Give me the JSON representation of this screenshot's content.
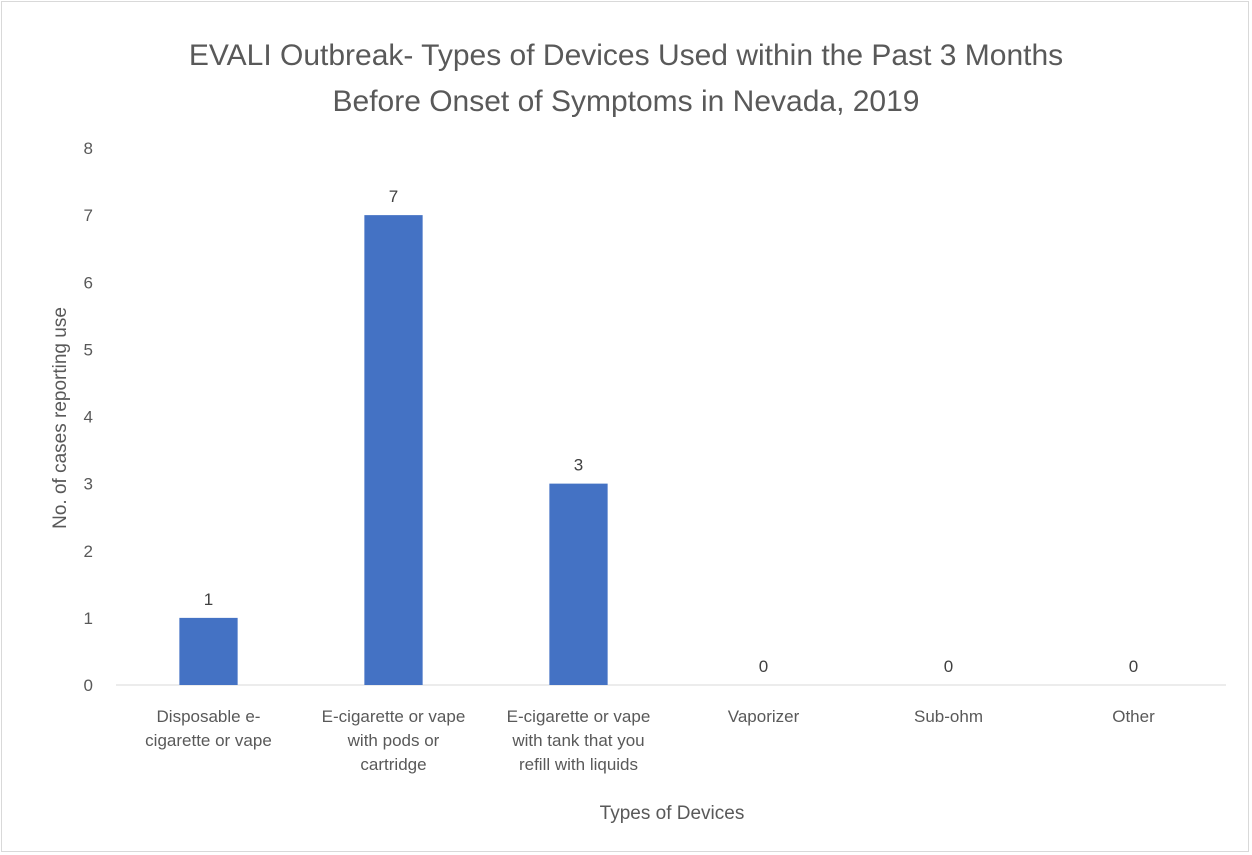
{
  "chart_data": {
    "type": "bar",
    "title_lines": [
      "EVALI Outbreak- Types of Devices Used within the Past 3 Months",
      "Before Onset of Symptoms in Nevada, 2019"
    ],
    "xlabel": "Types of Devices",
    "ylabel": "No. of cases reporting use",
    "ylim": [
      0,
      8
    ],
    "yticks": [
      "0",
      "1",
      "2",
      "3",
      "4",
      "5",
      "6",
      "7",
      "8"
    ],
    "categories": [
      [
        "Disposable e-",
        "cigarette or vape"
      ],
      [
        "E-cigarette or vape",
        "with pods or",
        "cartridge"
      ],
      [
        "E-cigarette or vape",
        "with tank that you",
        "refill with liquids"
      ],
      [
        "Vaporizer"
      ],
      [
        "Sub-ohm"
      ],
      [
        "Other"
      ]
    ],
    "values": [
      1,
      7,
      3,
      0,
      0,
      0
    ],
    "data_labels": [
      "1",
      "7",
      "3",
      "0",
      "0",
      "0"
    ],
    "bar_color": "#4472c4",
    "grid": false,
    "legend": "none"
  }
}
